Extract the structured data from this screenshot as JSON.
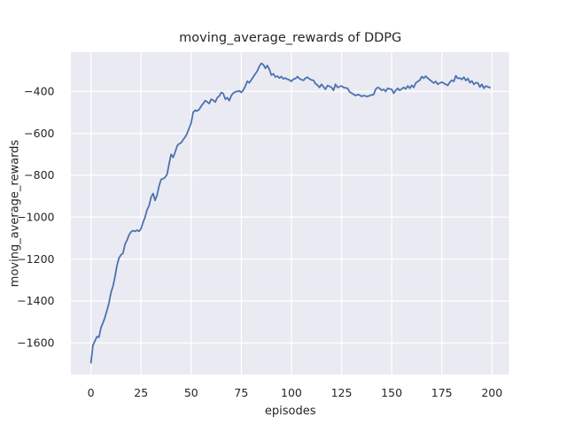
{
  "figure": {
    "background": "#ffffff",
    "axes_background": "#eaeaf2",
    "grid_color": "#ffffff",
    "text_color": "#262626"
  },
  "chart_data": {
    "type": "line",
    "title": "moving_average_rewards of DDPG",
    "xlabel": "episodes",
    "ylabel": "moving_average_rewards",
    "line_color": "#4c72b0",
    "line_width": 1.8,
    "grid": true,
    "legend_position": "none",
    "xlim": [
      -10,
      208.5
    ],
    "ylim": [
      -1751,
      -213
    ],
    "x_ticks": [
      0,
      25,
      50,
      75,
      100,
      125,
      150,
      175,
      200
    ],
    "x_tick_labels": [
      "0",
      "25",
      "50",
      "75",
      "100",
      "125",
      "150",
      "175",
      "200"
    ],
    "y_ticks": [
      -400,
      -600,
      -800,
      -1000,
      -1200,
      -1400,
      -1600
    ],
    "y_tick_labels": [
      "−400",
      "−600",
      "−800",
      "−1000",
      "−1200",
      "−1400",
      "−1600"
    ],
    "x": [
      0,
      1,
      2,
      3,
      4,
      5,
      6,
      7,
      8,
      9,
      10,
      11,
      12,
      13,
      14,
      15,
      16,
      17,
      18,
      19,
      20,
      21,
      22,
      23,
      24,
      25,
      26,
      27,
      28,
      29,
      30,
      31,
      32,
      33,
      34,
      35,
      36,
      37,
      38,
      39,
      40,
      41,
      42,
      43,
      44,
      45,
      46,
      47,
      48,
      49,
      50,
      51,
      52,
      53,
      54,
      55,
      56,
      57,
      58,
      59,
      60,
      61,
      62,
      63,
      64,
      65,
      66,
      67,
      68,
      69,
      70,
      71,
      72,
      73,
      74,
      75,
      76,
      77,
      78,
      79,
      80,
      81,
      82,
      83,
      84,
      85,
      86,
      87,
      88,
      89,
      90,
      91,
      92,
      93,
      94,
      95,
      96,
      97,
      98,
      99,
      100,
      101,
      102,
      103,
      104,
      105,
      106,
      107,
      108,
      109,
      110,
      111,
      112,
      113,
      114,
      115,
      116,
      117,
      118,
      119,
      120,
      121,
      122,
      123,
      124,
      125,
      126,
      127,
      128,
      129,
      130,
      131,
      132,
      133,
      134,
      135,
      136,
      137,
      138,
      139,
      140,
      141,
      142,
      143,
      144,
      145,
      146,
      147,
      148,
      149,
      150,
      151,
      152,
      153,
      154,
      155,
      156,
      157,
      158,
      159,
      160,
      161,
      162,
      163,
      164,
      165,
      166,
      167,
      168,
      169,
      170,
      171,
      172,
      173,
      174,
      175,
      176,
      177,
      178,
      179,
      180,
      181,
      182,
      183,
      184,
      185,
      186,
      187,
      188,
      189,
      190,
      191,
      192,
      193,
      194,
      195,
      196,
      197,
      198,
      199
    ],
    "y": [
      -1695,
      -1612,
      -1591,
      -1570,
      -1573,
      -1528,
      -1505,
      -1478,
      -1445,
      -1410,
      -1360,
      -1330,
      -1285,
      -1230,
      -1195,
      -1180,
      -1172,
      -1130,
      -1110,
      -1085,
      -1070,
      -1064,
      -1068,
      -1062,
      -1068,
      -1055,
      -1025,
      -1000,
      -965,
      -945,
      -905,
      -887,
      -920,
      -895,
      -850,
      -820,
      -817,
      -810,
      -795,
      -745,
      -700,
      -715,
      -690,
      -660,
      -650,
      -645,
      -630,
      -618,
      -600,
      -575,
      -550,
      -500,
      -490,
      -493,
      -486,
      -470,
      -458,
      -444,
      -450,
      -458,
      -437,
      -442,
      -451,
      -430,
      -422,
      -405,
      -410,
      -437,
      -430,
      -444,
      -420,
      -408,
      -402,
      -400,
      -397,
      -405,
      -394,
      -375,
      -351,
      -359,
      -345,
      -330,
      -316,
      -302,
      -280,
      -266,
      -272,
      -290,
      -276,
      -295,
      -322,
      -316,
      -331,
      -327,
      -336,
      -329,
      -340,
      -336,
      -342,
      -345,
      -352,
      -341,
      -339,
      -329,
      -339,
      -344,
      -347,
      -337,
      -332,
      -340,
      -345,
      -347,
      -363,
      -370,
      -381,
      -366,
      -378,
      -390,
      -372,
      -376,
      -381,
      -395,
      -366,
      -381,
      -377,
      -374,
      -381,
      -383,
      -385,
      -402,
      -408,
      -414,
      -420,
      -415,
      -417,
      -424,
      -420,
      -422,
      -424,
      -420,
      -417,
      -415,
      -390,
      -381,
      -385,
      -395,
      -390,
      -400,
      -385,
      -388,
      -390,
      -409,
      -395,
      -385,
      -395,
      -388,
      -381,
      -388,
      -374,
      -385,
      -371,
      -381,
      -360,
      -352,
      -347,
      -329,
      -337,
      -327,
      -337,
      -345,
      -352,
      -360,
      -352,
      -366,
      -360,
      -356,
      -361,
      -366,
      -371,
      -356,
      -347,
      -352,
      -325,
      -338,
      -336,
      -343,
      -332,
      -348,
      -338,
      -358,
      -350,
      -366,
      -358,
      -360,
      -379,
      -366,
      -385,
      -374,
      -378,
      -382
    ]
  }
}
